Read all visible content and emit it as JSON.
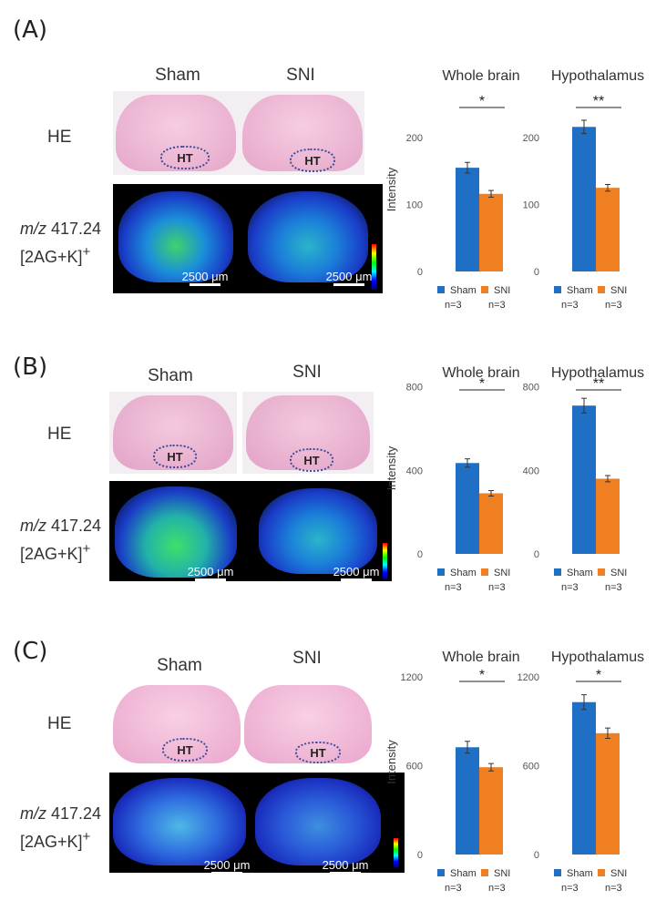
{
  "panels": [
    {
      "label": "(A)",
      "col_sham": "Sham",
      "col_sni": "SNI",
      "row_he": "HE",
      "mz_prefix": "m/z",
      "mz_value": "417.24",
      "ion": "[2AG+K]",
      "ion_charge": "+",
      "ht_label": "HT",
      "scale_label": "2500 μm"
    },
    {
      "label": "(B)",
      "col_sham": "Sham",
      "col_sni": "SNI",
      "row_he": "HE",
      "mz_prefix": "m/z",
      "mz_value": "417.24",
      "ion": "[2AG+K]",
      "ion_charge": "+",
      "ht_label": "HT",
      "scale_label": "2500 μm"
    },
    {
      "label": "(C)",
      "col_sham": "Sham",
      "col_sni": "SNI",
      "row_he": "HE",
      "mz_prefix": "m/z",
      "mz_value": "417.24",
      "ion": "[2AG+K]",
      "ion_charge": "+",
      "ht_label": "HT",
      "scale_label": "2500 μm"
    }
  ],
  "colors": {
    "sham": "#1f6fc5",
    "sni": "#f07f22",
    "ims_blue": "#1a3cc8"
  },
  "chart_data": [
    {
      "type": "bar",
      "panel": "A",
      "title": "Whole brain",
      "ylabel": "Intensity",
      "yticks": [
        0,
        100,
        200
      ],
      "ylim": [
        0,
        245
      ],
      "series": [
        {
          "name": "Sham",
          "n": "n=3",
          "value": 155,
          "err": 8
        },
        {
          "name": "SNI",
          "n": "n=3",
          "value": 116,
          "err": 5
        }
      ],
      "significance": "*"
    },
    {
      "type": "bar",
      "panel": "A",
      "title": "Hypothalamus",
      "ylabel": "",
      "yticks": [
        0,
        100,
        200
      ],
      "ylim": [
        0,
        245
      ],
      "series": [
        {
          "name": "Sham",
          "n": "n=3",
          "value": 216,
          "err": 10
        },
        {
          "name": "SNI",
          "n": "n=3",
          "value": 125,
          "err": 5
        }
      ],
      "significance": "**"
    },
    {
      "type": "bar",
      "panel": "B",
      "title": "Whole brain",
      "ylabel": "Intensity",
      "yticks": [
        0,
        400,
        800
      ],
      "ylim": [
        0,
        820
      ],
      "series": [
        {
          "name": "Sham",
          "n": "n=3",
          "value": 435,
          "err": 20
        },
        {
          "name": "SNI",
          "n": "n=3",
          "value": 290,
          "err": 13
        }
      ],
      "significance": "*"
    },
    {
      "type": "bar",
      "panel": "B",
      "title": "Hypothalamus",
      "ylabel": "",
      "yticks": [
        0,
        400,
        800
      ],
      "ylim": [
        0,
        820
      ],
      "series": [
        {
          "name": "Sham",
          "n": "n=3",
          "value": 710,
          "err": 35
        },
        {
          "name": "SNI",
          "n": "n=3",
          "value": 360,
          "err": 15
        }
      ],
      "significance": "**"
    },
    {
      "type": "bar",
      "panel": "C",
      "title": "Whole brain",
      "ylabel": "Intensity",
      "yticks": [
        0,
        600,
        1200
      ],
      "ylim": [
        0,
        1250
      ],
      "series": [
        {
          "name": "Sham",
          "n": "n=3",
          "value": 725,
          "err": 40
        },
        {
          "name": "SNI",
          "n": "n=3",
          "value": 590,
          "err": 25
        }
      ],
      "significance": "*"
    },
    {
      "type": "bar",
      "panel": "C",
      "title": "Hypothalamus",
      "ylabel": "",
      "yticks": [
        0,
        600,
        1200
      ],
      "ylim": [
        0,
        1250
      ],
      "series": [
        {
          "name": "Sham",
          "n": "n=3",
          "value": 1030,
          "err": 50
        },
        {
          "name": "SNI",
          "n": "n=3",
          "value": 820,
          "err": 35
        }
      ],
      "significance": "*"
    }
  ]
}
